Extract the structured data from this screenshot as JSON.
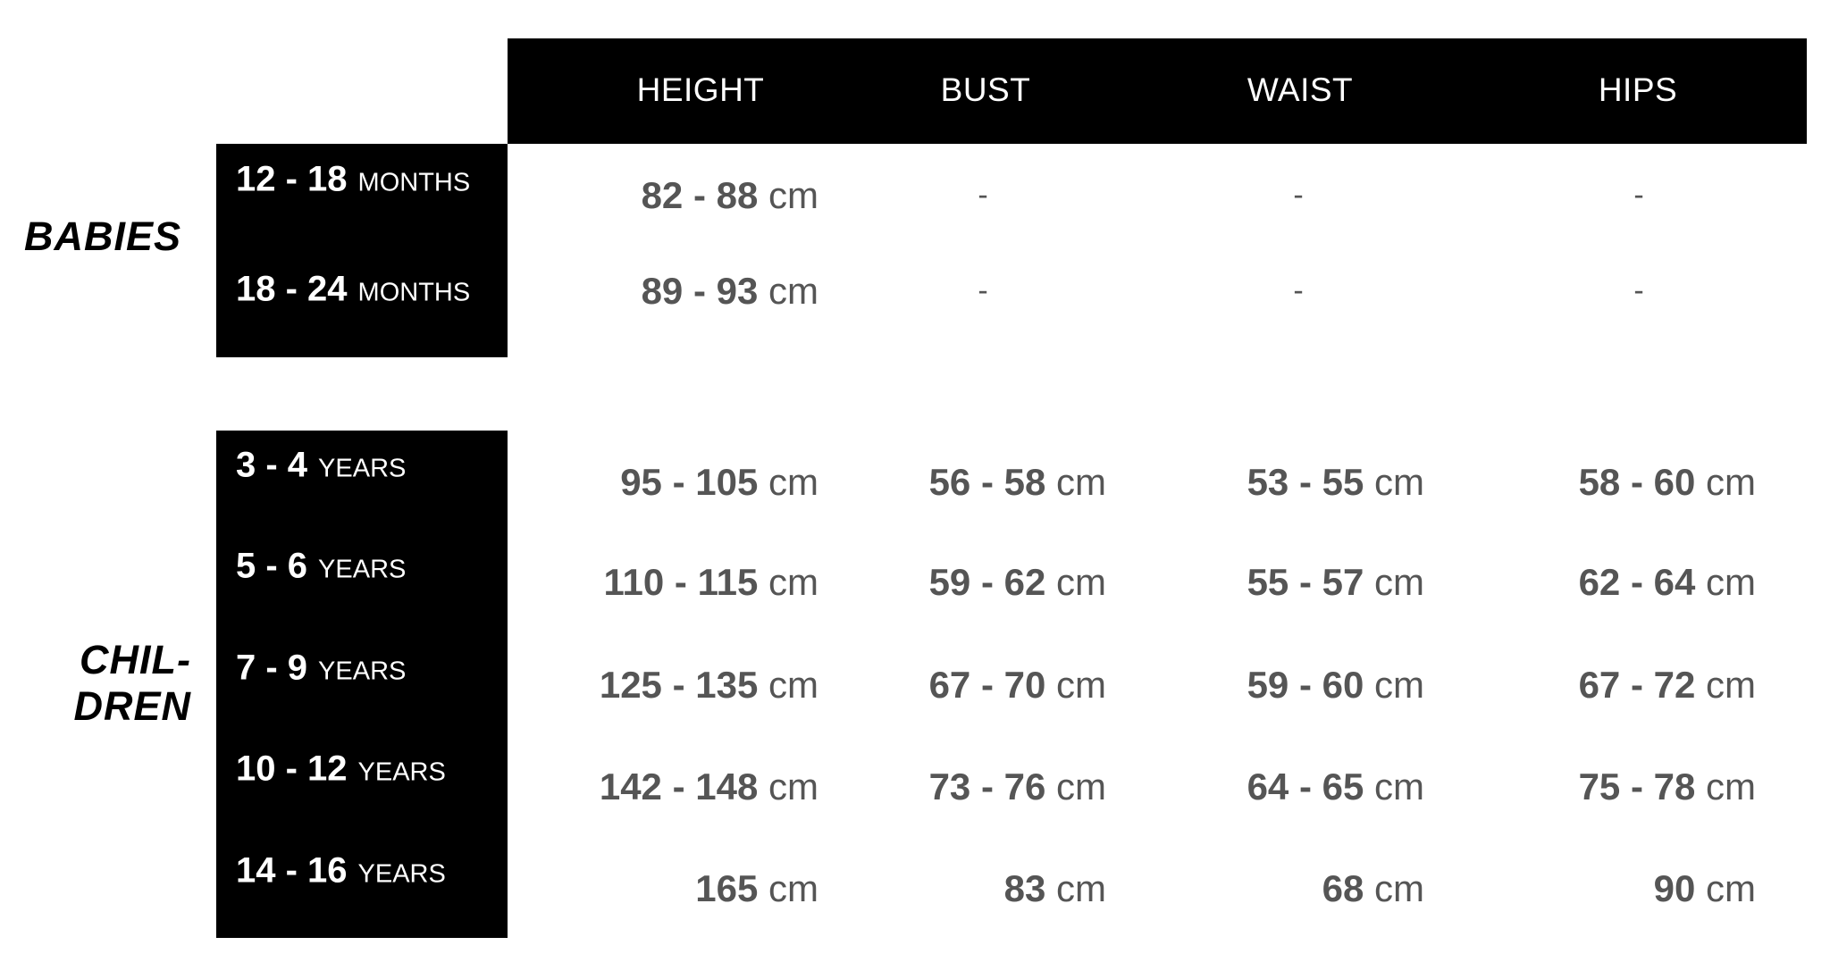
{
  "header": {
    "columns": [
      "HEIGHT",
      "BUST",
      "WAIST",
      "HIPS"
    ]
  },
  "groups": [
    {
      "category": "BABIES",
      "rows": [
        {
          "range": "12 - 18",
          "unit": "MONTHS",
          "height": "82 - 88",
          "bust": "-",
          "waist": "-",
          "hips": "-"
        },
        {
          "range": "18 - 24",
          "unit": "MONTHS",
          "height": "89 - 93",
          "bust": "-",
          "waist": "-",
          "hips": "-"
        }
      ]
    },
    {
      "category_line1": "CHIL-",
      "category_line2": "DREN",
      "rows": [
        {
          "range": "3 - 4",
          "unit": "YEARS",
          "height": "95 - 105",
          "bust": "56 - 58",
          "waist": "53 - 55",
          "hips": "58 - 60"
        },
        {
          "range": "5 - 6",
          "unit": "YEARS",
          "height": "110 - 115",
          "bust": "59 - 62",
          "waist": "55 - 57",
          "hips": "62 - 64"
        },
        {
          "range": "7 - 9",
          "unit": "YEARS",
          "height": "125 - 135",
          "bust": "67 - 70",
          "waist": "59 - 60",
          "hips": "67 - 72"
        },
        {
          "range": "10 - 12",
          "unit": "YEARS",
          "height": "142 - 148",
          "bust": "73 - 76",
          "waist": "64 - 65",
          "hips": "75 - 78"
        },
        {
          "range": "14 - 16",
          "unit": "YEARS",
          "height": "165",
          "bust": "83",
          "waist": "68",
          "hips": "90"
        }
      ]
    }
  ],
  "unit_cm": "cm"
}
